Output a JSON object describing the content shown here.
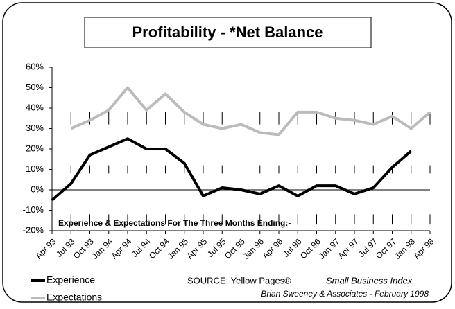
{
  "chart_data": {
    "type": "line",
    "title": "Profitability - *Net Balance",
    "annotation": "Experience & Expectations For The Three Months Ending:-",
    "source": "SOURCE: Yellow Pages®",
    "source_index": "Small Business Index",
    "source_credit": "Brian Sweeney & Associates - February 1998",
    "categories": [
      "Apr 93",
      "Jul 93",
      "Oct 93",
      "Jan 94",
      "Apr 94",
      "Jul 94",
      "Oct 94",
      "Jan 95",
      "Apr 95",
      "Jul 95",
      "Oct 95",
      "Jan 96",
      "Apr 96",
      "Jul 96",
      "Oct 96",
      "Jan 97",
      "Apr 97",
      "Jul 97",
      "Oct 97",
      "Jan 98",
      "Apr 98"
    ],
    "series": [
      {
        "name": "Experience",
        "color": "#000000",
        "values": [
          -5,
          3,
          17,
          21,
          25,
          20,
          20,
          13,
          -3,
          1,
          0,
          -2,
          2,
          -3,
          2,
          2,
          -2,
          1,
          11,
          19,
          null
        ]
      },
      {
        "name": "Expectations",
        "color": "#bbbbbb",
        "values": [
          null,
          30,
          34,
          39,
          50,
          39,
          47,
          38,
          32,
          30,
          32,
          28,
          27,
          38,
          38,
          35,
          34,
          32,
          36,
          30,
          38
        ]
      }
    ],
    "ylim": [
      -20,
      60
    ],
    "yticks": [
      {
        "value": -20,
        "label": "-20%"
      },
      {
        "value": -10,
        "label": "-10%"
      },
      {
        "value": 0,
        "label": "0%"
      },
      {
        "value": 10,
        "label": "10%"
      },
      {
        "value": 20,
        "label": "20%"
      },
      {
        "value": 30,
        "label": "30%"
      },
      {
        "value": 40,
        "label": "40%"
      },
      {
        "value": 50,
        "label": "50%"
      },
      {
        "value": 60,
        "label": "60%"
      }
    ],
    "legend": "bottom-left"
  }
}
